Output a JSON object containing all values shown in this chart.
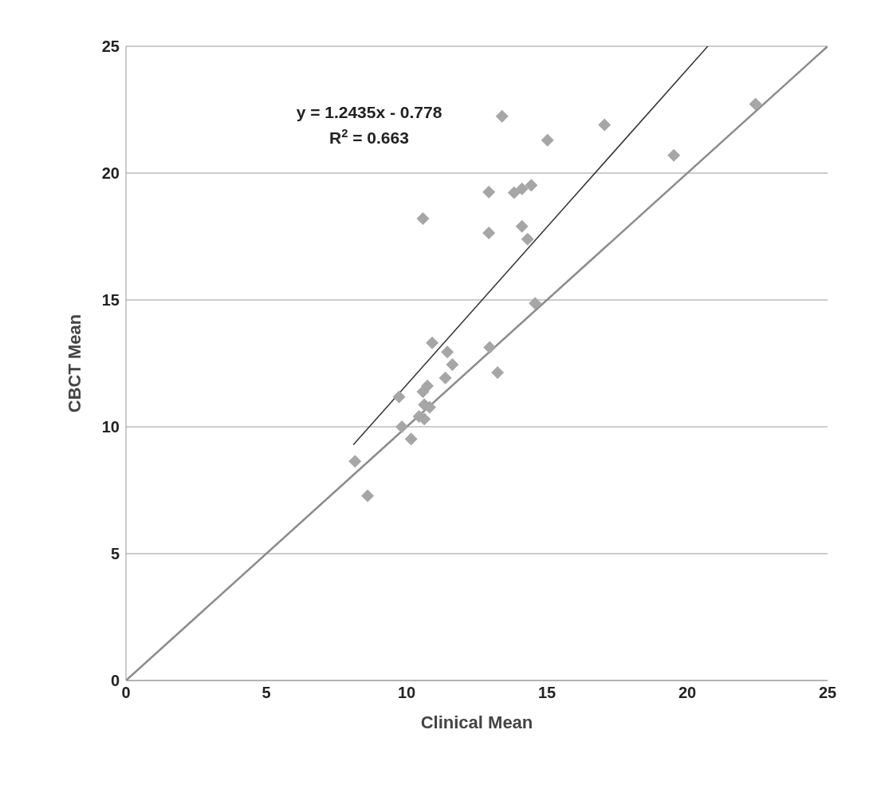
{
  "chart_data": {
    "type": "scatter",
    "xlabel": "Clinical Mean",
    "ylabel": "CBCT Mean",
    "annotations": [
      "y = 1.2435x - 0.778",
      "R$^{2}$ = 0.663"
    ],
    "series": [
      {
        "color": "#a6a6a6",
        "marker": "diamond",
        "x": [
          10.91,
          11.45,
          11.63,
          12.96,
          13.24,
          11.38,
          10.74,
          10.58,
          9.73,
          10.63,
          10.82,
          10.44,
          10.63,
          9.83,
          10.16,
          8.16,
          8.61,
          13.4,
          17.05,
          15.02,
          12.93,
          13.83,
          14.11,
          14.44,
          10.58,
          12.93,
          14.11,
          14.31,
          14.58,
          22.43,
          19.52
        ],
        "values": [
          13.31,
          12.95,
          12.45,
          13.13,
          12.14,
          11.93,
          11.61,
          11.38,
          11.18,
          10.87,
          10.77,
          10.41,
          10.31,
          10.0,
          9.52,
          8.64,
          7.28,
          22.24,
          21.9,
          21.3,
          19.25,
          19.23,
          19.38,
          19.52,
          18.21,
          17.64,
          17.9,
          17.4,
          14.87,
          22.72,
          20.7
        ]
      },
      {
        "type": "line",
        "color": "#333333",
        "line_style": "solid",
        "x": [
          8.1,
          20.73
        ],
        "values": [
          9.29,
          25.0
        ]
      },
      {
        "type": "line",
        "color": "#8c8c8c",
        "line_style": "solid",
        "x": [
          0,
          25
        ],
        "values": [
          0,
          25
        ]
      }
    ],
    "xlim": [
      0,
      25
    ],
    "ylim": [
      0,
      25
    ],
    "xticks": [
      0,
      5,
      10,
      15,
      20,
      25
    ],
    "yticks": [
      0,
      5,
      10,
      15,
      20,
      25
    ],
    "grid": "y"
  }
}
